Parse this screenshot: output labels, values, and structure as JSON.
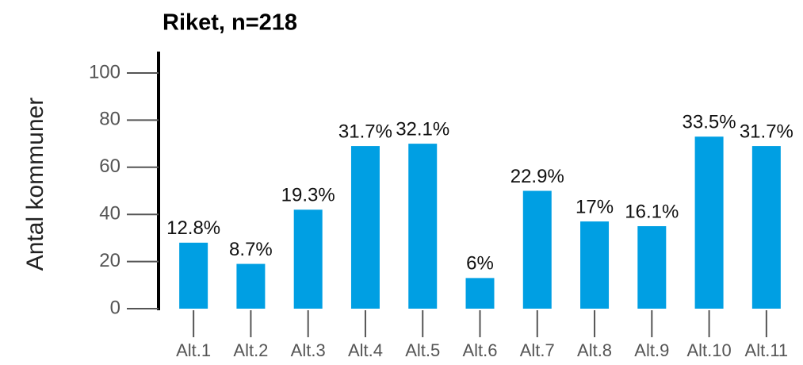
{
  "chart_data": {
    "type": "bar",
    "title": "Riket, n=218",
    "ylabel": "Antal kommuner",
    "categories": [
      "Alt.1",
      "Alt.2",
      "Alt.3",
      "Alt.4",
      "Alt.5",
      "Alt.6",
      "Alt.7",
      "Alt.8",
      "Alt.9",
      "Alt.10",
      "Alt.11"
    ],
    "values": [
      28,
      19,
      42,
      69,
      70,
      13,
      50,
      37,
      35,
      73,
      69
    ],
    "value_labels": [
      "12.8%",
      "8.7%",
      "19.3%",
      "31.7%",
      "32.1%",
      "6%",
      "22.9%",
      "17%",
      "16.1%",
      "33.5%",
      "31.7%"
    ],
    "color": "#009fe3",
    "ylim": [
      0,
      100
    ],
    "yticks": [
      0,
      20,
      40,
      60,
      80,
      100
    ],
    "grid": false
  }
}
